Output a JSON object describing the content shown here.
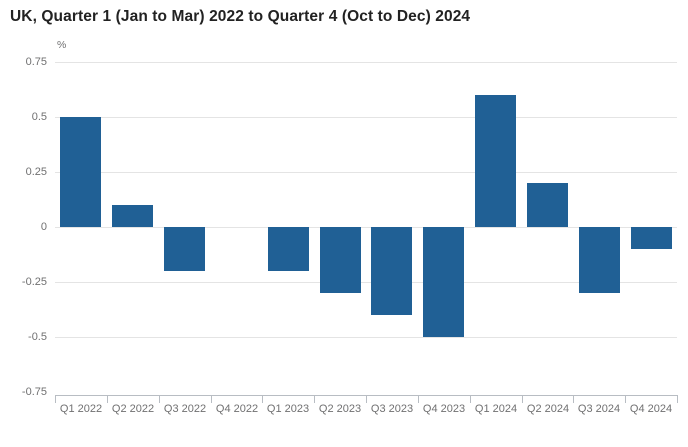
{
  "chart_data": {
    "type": "bar",
    "title": "UK, Quarter 1 (Jan to Mar) 2022 to Quarter 4 (Oct to Dec) 2024",
    "ylabel": "%",
    "xlabel": "",
    "categories": [
      "Q1 2022",
      "Q2 2022",
      "Q3 2022",
      "Q4 2022",
      "Q1 2023",
      "Q2 2023",
      "Q3 2023",
      "Q4 2023",
      "Q1 2024",
      "Q2 2024",
      "Q3 2024",
      "Q4 2024"
    ],
    "values": [
      0.5,
      0.1,
      -0.2,
      0.0,
      -0.2,
      -0.3,
      -0.4,
      -0.5,
      0.6,
      0.2,
      -0.3,
      -0.1
    ],
    "ylim": [
      -0.75,
      0.75
    ],
    "ytick_step": 0.25,
    "ytick_labels": [
      "0.75",
      "0.5",
      "0.25",
      "0",
      "-0.25",
      "-0.5",
      "-0.75"
    ],
    "ytick_values": [
      0.75,
      0.5,
      0.25,
      0,
      -0.25,
      -0.5,
      -0.75
    ],
    "grid": true,
    "legend": "none",
    "bar_color": "#206095",
    "gridline_color": "#e4e4e4",
    "axis_color": "#b8bdc3",
    "tick_label_color": "#707071",
    "title_color": "#222222"
  }
}
